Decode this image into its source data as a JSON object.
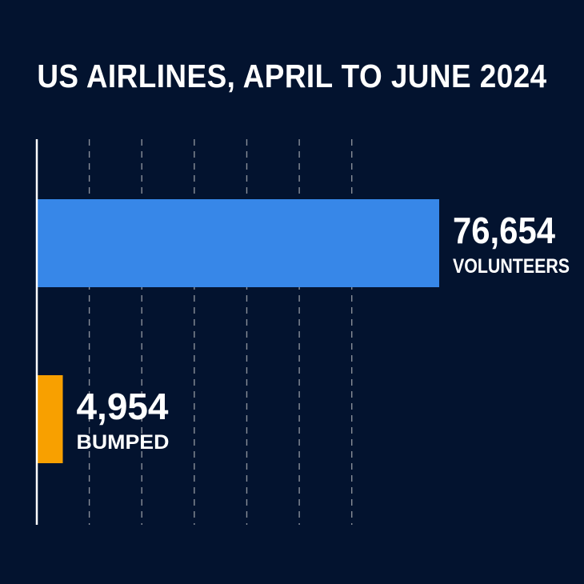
{
  "background": "#03132f",
  "chart_data": {
    "type": "bar",
    "orientation": "horizontal",
    "title": "US AIRLINES, APRIL TO JUNE 2024",
    "categories": [
      "VOLUNTEERS",
      "BUMPED"
    ],
    "values": [
      76654,
      4954
    ],
    "value_labels": [
      "76,654",
      "4,954"
    ],
    "colors": [
      "#3787e8",
      "#f8a000"
    ],
    "xlim": [
      0,
      90000
    ],
    "grid": true,
    "grid_style": "dashed vertical",
    "axis_color": "#ffffff",
    "grid_color": "#8a8f99"
  }
}
